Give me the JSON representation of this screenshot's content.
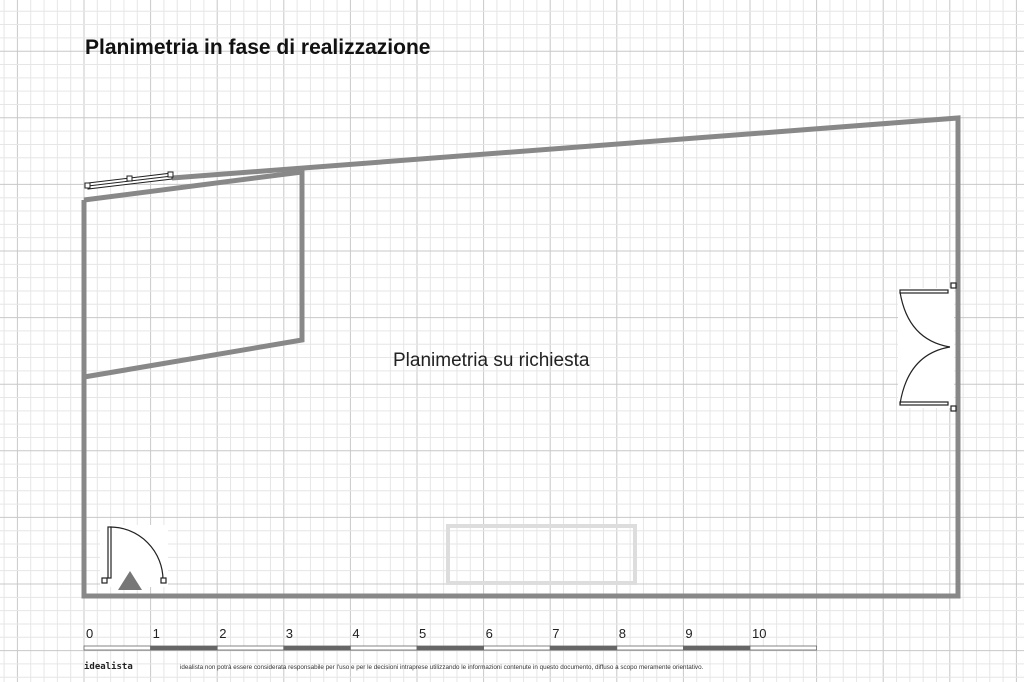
{
  "title": "Planimetria in fase di realizzazione",
  "center_label": "Planimetria su richiesta",
  "scale": {
    "ticks": [
      "0",
      "1",
      "2",
      "3",
      "4",
      "5",
      "6",
      "7",
      "8",
      "9",
      "10"
    ]
  },
  "footer": {
    "brand": "idealista",
    "disclaimer": "idealista non potrà essere considerata responsabile per l'uso e per le decisioni intraprese utilizzando le informazioni contenute in questo documento, diffuso a scopo meramente orientativo."
  },
  "colors": {
    "wall": "#888888",
    "grid_minor": "#e6e6e6",
    "grid_major": "#c8c8c8",
    "furniture": "#dddddd"
  }
}
